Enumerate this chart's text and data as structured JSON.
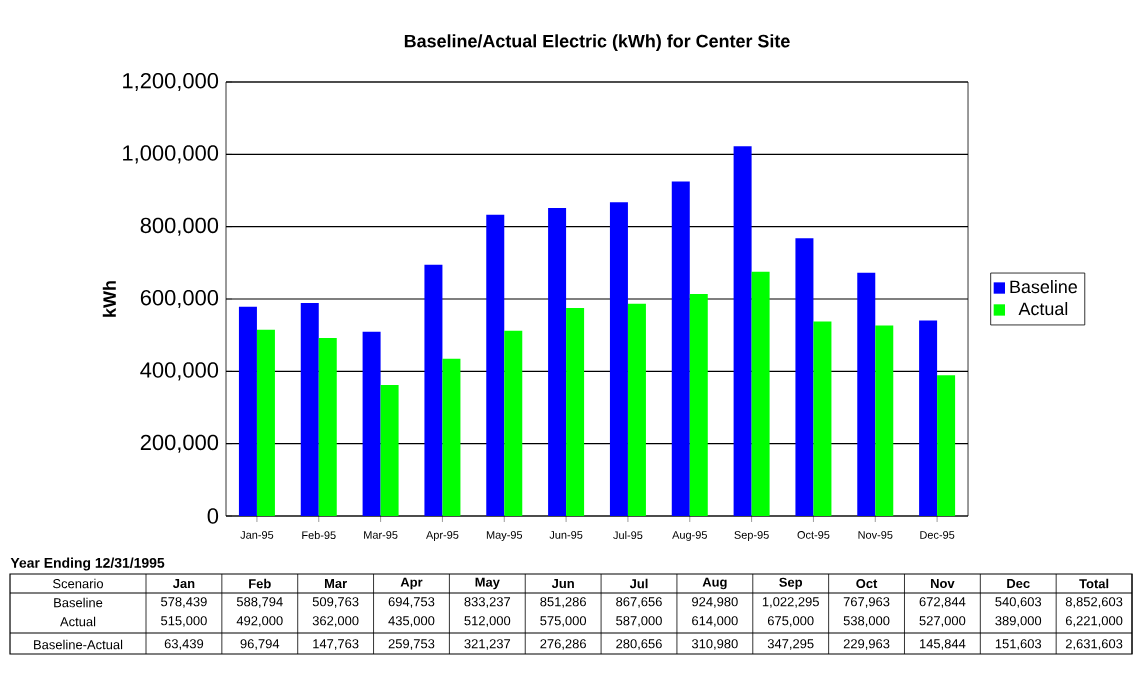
{
  "chart_data": [
    {
      "type": "bar",
      "title": "Baseline/Actual Electric (kWh) for Center Site",
      "ylabel": "kWh",
      "categories": [
        "Jan-95",
        "Feb-95",
        "Mar-95",
        "Apr-95",
        "May-95",
        "Jun-95",
        "Jul-95",
        "Aug-95",
        "Sep-95",
        "Oct-95",
        "Nov-95",
        "Dec-95"
      ],
      "series": [
        {
          "name": "Baseline",
          "color": "#0000ff",
          "values": [
            578439,
            588794,
            509763,
            694753,
            833237,
            851286,
            867656,
            924980,
            1022295,
            767963,
            672844,
            540603
          ]
        },
        {
          "name": "Actual",
          "color": "#00ff00",
          "values": [
            515000,
            492000,
            362000,
            435000,
            512000,
            575000,
            587000,
            614000,
            675000,
            538000,
            527000,
            389000
          ]
        }
      ],
      "ylim": [
        0,
        1200000
      ],
      "yticks": [
        0,
        {
          "value": 200000,
          "label": "200,000"
        },
        {
          "value": 400000,
          "label": "400,000"
        },
        {
          "value": 600000,
          "label": "600,000"
        },
        {
          "value": 800000,
          "label": "800,000"
        },
        {
          "value": 1000000,
          "label": "1,000,000"
        },
        {
          "value": 1200000,
          "label": "1,200,000"
        }
      ],
      "grid": "y",
      "legend": "right"
    },
    {
      "type": "other",
      "title": "Year Ending 12/31/1995",
      "legend_title": "Scenario",
      "categories": [
        "Jan",
        "Feb",
        "Mar",
        "Apr",
        "May",
        "Jun",
        "Jul",
        "Aug",
        "Sep",
        "Oct",
        "Nov",
        "Dec",
        "Total"
      ],
      "series": [
        {
          "name": "Baseline",
          "values": [
            578439,
            588794,
            509763,
            694753,
            833237,
            851286,
            867656,
            924980,
            1022295,
            767963,
            672844,
            540603,
            8852603
          ],
          "value_labels": [
            "578,439",
            "588,794",
            "509,763",
            "694,753",
            "833,237",
            "851,286",
            "867,656",
            "924,980",
            "1,022,295",
            "767,963",
            "672,844",
            "540,603",
            "8,852,603"
          ]
        },
        {
          "name": "Actual",
          "values": [
            515000,
            492000,
            362000,
            435000,
            512000,
            575000,
            587000,
            614000,
            675000,
            538000,
            527000,
            389000,
            6221000
          ],
          "value_labels": [
            "515,000",
            "492,000",
            "362,000",
            "435,000",
            "512,000",
            "575,000",
            "587,000",
            "614,000",
            "675,000",
            "538,000",
            "527,000",
            "389,000",
            "6,221,000"
          ]
        },
        {
          "name": "Baseline-Actual",
          "values": [
            63439,
            96794,
            147763,
            259753,
            321237,
            276286,
            280656,
            310980,
            347295,
            229963,
            145844,
            151603,
            2631603
          ],
          "value_labels": [
            "63,439",
            "96,794",
            "147,763",
            "259,753",
            "321,237",
            "276,286",
            "280,656",
            "310,980",
            "347,295",
            "229,963",
            "145,844",
            "151,603",
            "2,631,603"
          ]
        }
      ]
    }
  ]
}
